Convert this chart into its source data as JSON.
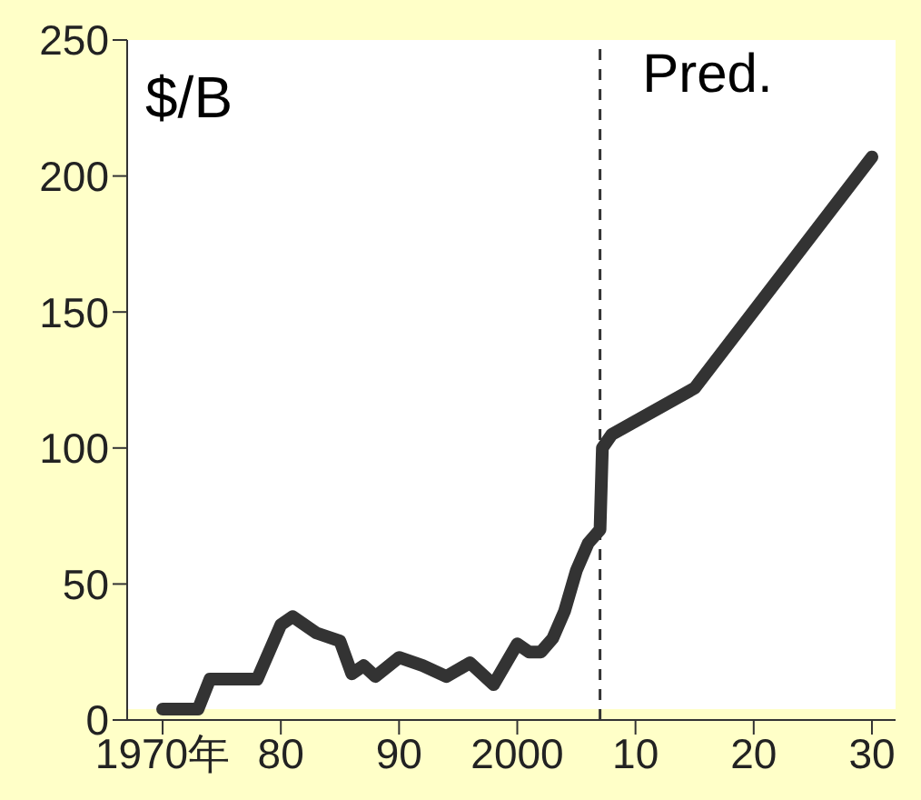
{
  "chart_data": {
    "type": "line",
    "ylabel": "$/B",
    "x": [
      1970,
      1973,
      1974,
      1978,
      1980,
      1981,
      1983,
      1985,
      1986,
      1987,
      1988,
      1990,
      1992,
      1994,
      1996,
      1998,
      2000,
      2001,
      2002,
      2003,
      2004,
      2005,
      2006,
      2007,
      2007.2,
      2008,
      2015,
      2030
    ],
    "series": [
      {
        "color": "#333333",
        "values": [
          4,
          4,
          15,
          15,
          35,
          38,
          32,
          29,
          17,
          20,
          16,
          23,
          20,
          16,
          21,
          13,
          28,
          25,
          25,
          30,
          40,
          55,
          65,
          70,
          100,
          105,
          122,
          207
        ]
      }
    ],
    "xlim": [
      1967,
      2032
    ],
    "xticks": [
      {
        "value": 1970,
        "label": "1970年"
      },
      {
        "value": 1980,
        "label": "80"
      },
      {
        "value": 1990,
        "label": "90"
      },
      {
        "value": 2000,
        "label": "2000"
      },
      {
        "value": 2010,
        "label": "10"
      },
      {
        "value": 2020,
        "label": "20"
      },
      {
        "value": 2030,
        "label": "30"
      }
    ],
    "ylim": [
      0,
      250
    ],
    "yticks": [
      0,
      50,
      100,
      150,
      200,
      250
    ],
    "ref_lines": [
      {
        "axis": "x",
        "value": 2007,
        "label": "Pred.",
        "line_style": "dashed",
        "color": "#333333"
      }
    ],
    "grid": false,
    "legend": false,
    "marker": "none",
    "line_style": "solid"
  }
}
